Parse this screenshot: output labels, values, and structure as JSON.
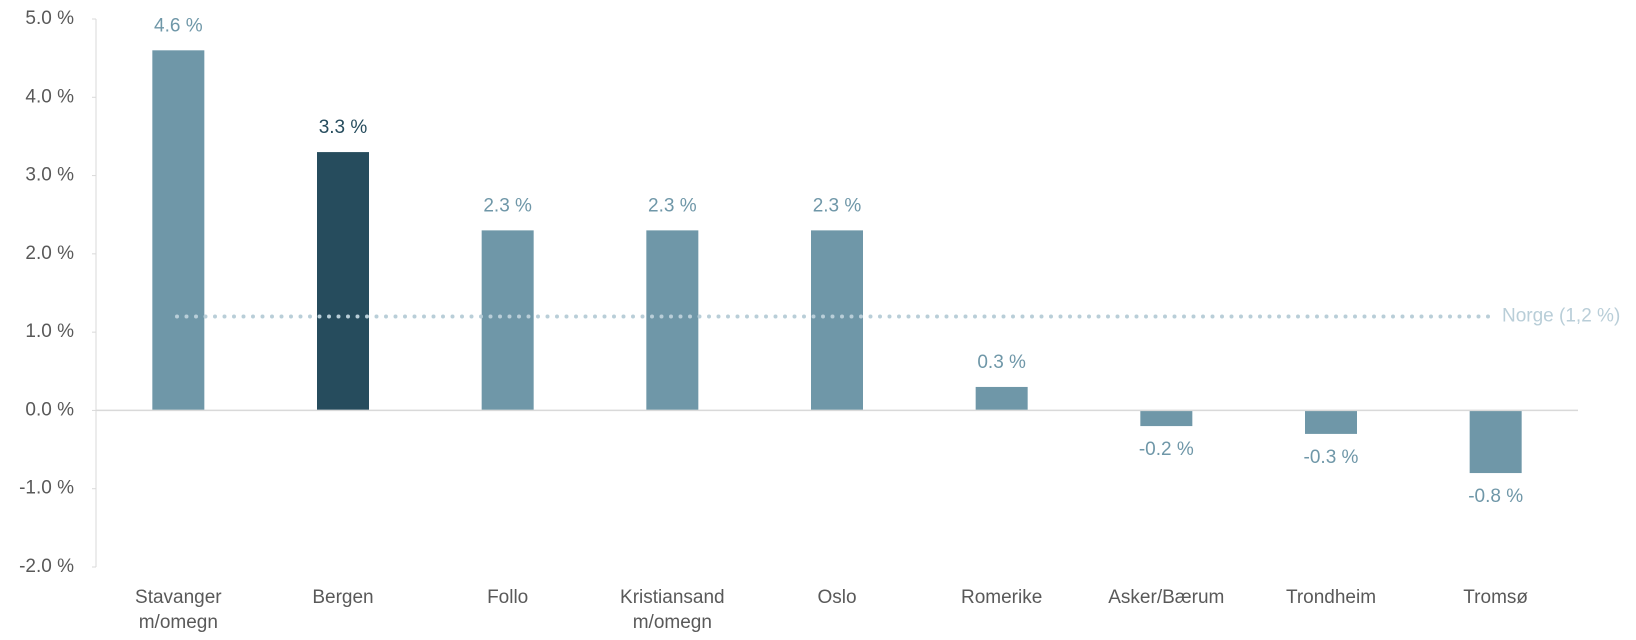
{
  "chart_data": {
    "type": "bar",
    "categories": [
      "Stavanger m/omegn",
      "Bergen",
      "Follo",
      "Kristiansand m/omegn",
      "Oslo",
      "Romerike",
      "Asker/Bærum",
      "Trondheim",
      "Tromsø"
    ],
    "values": [
      4.6,
      3.3,
      2.3,
      2.3,
      2.3,
      0.3,
      -0.2,
      -0.3,
      -0.8
    ],
    "value_labels": [
      "4.6 %",
      "3.3 %",
      "2.3 %",
      "2.3 %",
      "2.3 %",
      "0.3 %",
      "-0.2 %",
      "-0.3 %",
      "-0.8 %"
    ],
    "colors": [
      "#6f97a8",
      "#264c5d",
      "#6f97a8",
      "#6f97a8",
      "#6f97a8",
      "#6f97a8",
      "#6f97a8",
      "#6f97a8",
      "#6f97a8"
    ],
    "ylim": [
      -2,
      5
    ],
    "yticks": [
      {
        "value": -2,
        "label": "-2.0 %"
      },
      {
        "value": -1,
        "label": "-1.0 %"
      },
      {
        "value": 0,
        "label": "0.0 %"
      },
      {
        "value": 1,
        "label": "1.0 %"
      },
      {
        "value": 2,
        "label": "2.0 %"
      },
      {
        "value": 3,
        "label": "3.0 %"
      },
      {
        "value": 4,
        "label": "4.0 %"
      },
      {
        "value": 5,
        "label": "5.0 %"
      }
    ],
    "reference_line": {
      "label": "Norge (1,2 %)",
      "value": 1.2,
      "color": "#b9ced8"
    },
    "grid": false
  }
}
